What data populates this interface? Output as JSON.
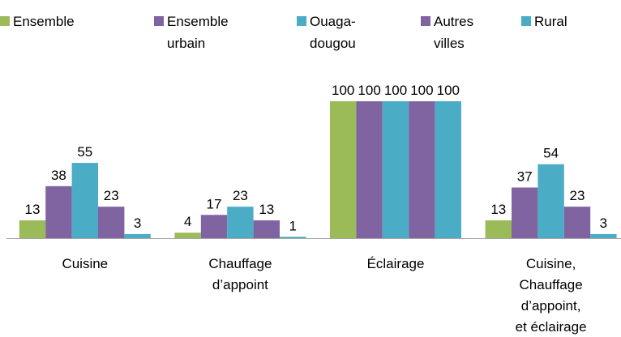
{
  "chart_data": {
    "type": "bar",
    "categories": [
      "Cuisine",
      "Chauffage\nd’appoint",
      "Éclairage",
      "Cuisine,\nChauffage\nd’appoint,\net éclairage"
    ],
    "series": [
      {
        "name": "Ensemble",
        "color": "#9bbb59",
        "values": [
          13,
          4,
          100,
          13
        ]
      },
      {
        "name": "Ensemble\nurbain",
        "color": "#8064a2",
        "values": [
          38,
          17,
          100,
          37
        ]
      },
      {
        "name": "Ouaga-\ndougou",
        "color": "#4bacc6",
        "values": [
          55,
          23,
          100,
          54
        ]
      },
      {
        "name": "Autres\nvilles",
        "color": "#8064a2",
        "values": [
          23,
          13,
          100,
          23
        ]
      },
      {
        "name": "Rural",
        "color": "#4bacc6",
        "values": [
          3,
          1,
          100,
          3
        ]
      }
    ]
  }
}
